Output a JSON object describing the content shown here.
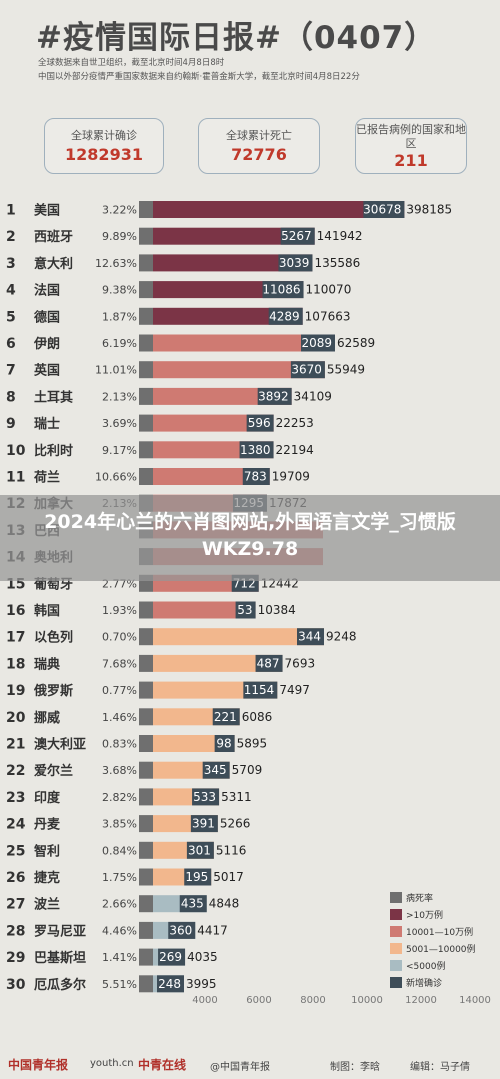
{
  "header": {
    "title": "#疫情国际日报#（0407）",
    "source_line1": "全球数据来自世卫组织，截至北京时间4月8日8时",
    "source_line2": "中国以外部分疫情严重国家数据来自约翰斯·霍普金斯大学，截至北京时间4月8日22分"
  },
  "kpis": [
    {
      "label": "全球累计确诊",
      "value": "1282931"
    },
    {
      "label": "全球累计死亡",
      "value": "72776"
    },
    {
      "label": "已报告病例的国家和地区",
      "value": "211"
    }
  ],
  "overlay": {
    "text": "2024年心兰的六肖图网站,外国语言文学_习惯版WKZ9.78"
  },
  "colors": {
    "death_rate": "#6f6f6f",
    "over100k": "#7b3446",
    "range10k_100k": "#cf7a72",
    "range5k_10k": "#f2b78d",
    "under5k": "#a9bcc2",
    "new_cases": "#3e4d58"
  },
  "chart_data": {
    "type": "bar",
    "rows": [
      {
        "rank": "1",
        "name": "美国",
        "rate": "3.22%",
        "new": 30678,
        "total": 398185,
        "tier": "over100k"
      },
      {
        "rank": "2",
        "name": "西班牙",
        "rate": "9.89%",
        "new": 5267,
        "total": 141942,
        "tier": "over100k"
      },
      {
        "rank": "3",
        "name": "意大利",
        "rate": "12.63%",
        "new": 3039,
        "total": 135586,
        "tier": "over100k"
      },
      {
        "rank": "4",
        "name": "法国",
        "rate": "9.38%",
        "new": 11086,
        "total": 110070,
        "tier": "over100k"
      },
      {
        "rank": "5",
        "name": "德国",
        "rate": "1.87%",
        "new": 4289,
        "total": 107663,
        "tier": "over100k"
      },
      {
        "rank": "6",
        "name": "伊朗",
        "rate": "6.19%",
        "new": 2089,
        "total": 62589,
        "tier": "range10k_100k"
      },
      {
        "rank": "7",
        "name": "英国",
        "rate": "11.01%",
        "new": 3670,
        "total": 55949,
        "tier": "range10k_100k"
      },
      {
        "rank": "8",
        "name": "土耳其",
        "rate": "2.13%",
        "new": 3892,
        "total": 34109,
        "tier": "range10k_100k"
      },
      {
        "rank": "9",
        "name": "瑞士",
        "rate": "3.69%",
        "new": 596,
        "total": 22253,
        "tier": "range10k_100k"
      },
      {
        "rank": "10",
        "name": "比利时",
        "rate": "9.17%",
        "new": 1380,
        "total": 22194,
        "tier": "range10k_100k"
      },
      {
        "rank": "11",
        "name": "荷兰",
        "rate": "10.66%",
        "new": 783,
        "total": 19709,
        "tier": "range10k_100k"
      },
      {
        "rank": "12",
        "name": "加拿大",
        "rate": "2.13%",
        "new": 1295,
        "total": 17872,
        "tier": "range10k_100k"
      },
      {
        "rank": "13",
        "name": "巴西",
        "rate": "",
        "new": null,
        "total": null,
        "tier": "range10k_100k"
      },
      {
        "rank": "14",
        "name": "奥地利",
        "rate": "",
        "new": null,
        "total": null,
        "tier": "range10k_100k"
      },
      {
        "rank": "15",
        "name": "葡萄牙",
        "rate": "2.77%",
        "new": 712,
        "total": 12442,
        "tier": "range10k_100k"
      },
      {
        "rank": "16",
        "name": "韩国",
        "rate": "1.93%",
        "new": 53,
        "total": 10384,
        "tier": "range10k_100k"
      },
      {
        "rank": "17",
        "name": "以色列",
        "rate": "0.70%",
        "new": 344,
        "total": 9248,
        "tier": "range5k_10k"
      },
      {
        "rank": "18",
        "name": "瑞典",
        "rate": "7.68%",
        "new": 487,
        "total": 7693,
        "tier": "range5k_10k"
      },
      {
        "rank": "19",
        "name": "俄罗斯",
        "rate": "0.77%",
        "new": 1154,
        "total": 7497,
        "tier": "range5k_10k"
      },
      {
        "rank": "20",
        "name": "挪威",
        "rate": "1.46%",
        "new": 221,
        "total": 6086,
        "tier": "range5k_10k"
      },
      {
        "rank": "21",
        "name": "澳大利亚",
        "rate": "0.83%",
        "new": 98,
        "total": 5895,
        "tier": "range5k_10k"
      },
      {
        "rank": "22",
        "name": "爱尔兰",
        "rate": "3.68%",
        "new": 345,
        "total": 5709,
        "tier": "range5k_10k"
      },
      {
        "rank": "23",
        "name": "印度",
        "rate": "2.82%",
        "new": 533,
        "total": 5311,
        "tier": "range5k_10k"
      },
      {
        "rank": "24",
        "name": "丹麦",
        "rate": "3.85%",
        "new": 391,
        "total": 5266,
        "tier": "range5k_10k"
      },
      {
        "rank": "25",
        "name": "智利",
        "rate": "0.84%",
        "new": 301,
        "total": 5116,
        "tier": "range5k_10k"
      },
      {
        "rank": "26",
        "name": "捷克",
        "rate": "1.75%",
        "new": 195,
        "total": 5017,
        "tier": "range5k_10k"
      },
      {
        "rank": "27",
        "name": "波兰",
        "rate": "2.66%",
        "new": 435,
        "total": 4848,
        "tier": "under5k"
      },
      {
        "rank": "28",
        "name": "罗马尼亚",
        "rate": "4.46%",
        "new": 360,
        "total": 4417,
        "tier": "under5k"
      },
      {
        "rank": "29",
        "name": "巴基斯坦",
        "rate": "1.41%",
        "new": 269,
        "total": 4035,
        "tier": "under5k"
      },
      {
        "rank": "30",
        "name": "厄瓜多尔",
        "rate": "5.51%",
        "new": 248,
        "total": 3995,
        "tier": "under5k"
      }
    ],
    "axis_ticks": [
      "4000",
      "6000",
      "8000",
      "10000",
      "12000",
      "14000"
    ],
    "legend": [
      {
        "label": "病死率",
        "color_key": "death_rate"
      },
      {
        "label": ">10万例",
        "color_key": "over100k"
      },
      {
        "label": "10001—10万例",
        "color_key": "range10k_100k"
      },
      {
        "label": "5001—10000例",
        "color_key": "range5k_10k"
      },
      {
        "label": "<5000例",
        "color_key": "under5k"
      },
      {
        "label": "新增确诊",
        "color_key": "new_cases"
      }
    ]
  },
  "footer": {
    "logo1": "中国青年报",
    "logo2": "youth.cn",
    "logo3": "中青在线",
    "weibo": "@中国青年报",
    "credit1": "制图：李晗",
    "credit2": "编辑：马子倩"
  }
}
